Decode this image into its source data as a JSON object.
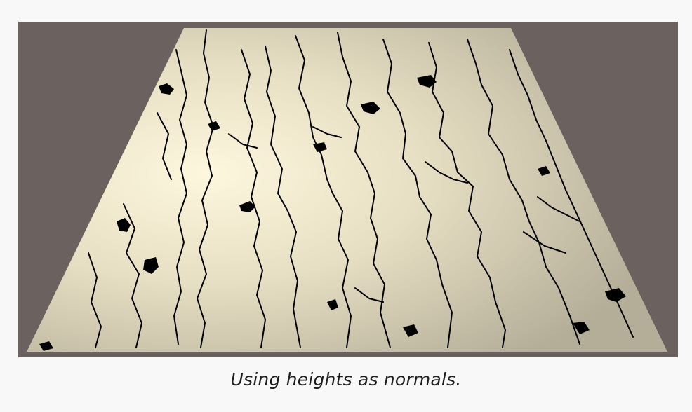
{
  "caption": "Using heights as normals.",
  "render": {
    "background_color": "#6b625f",
    "plane_color_light": "#fbf5dc",
    "plane_color_dark": "#b5ae98",
    "crack_color": "#000000"
  }
}
